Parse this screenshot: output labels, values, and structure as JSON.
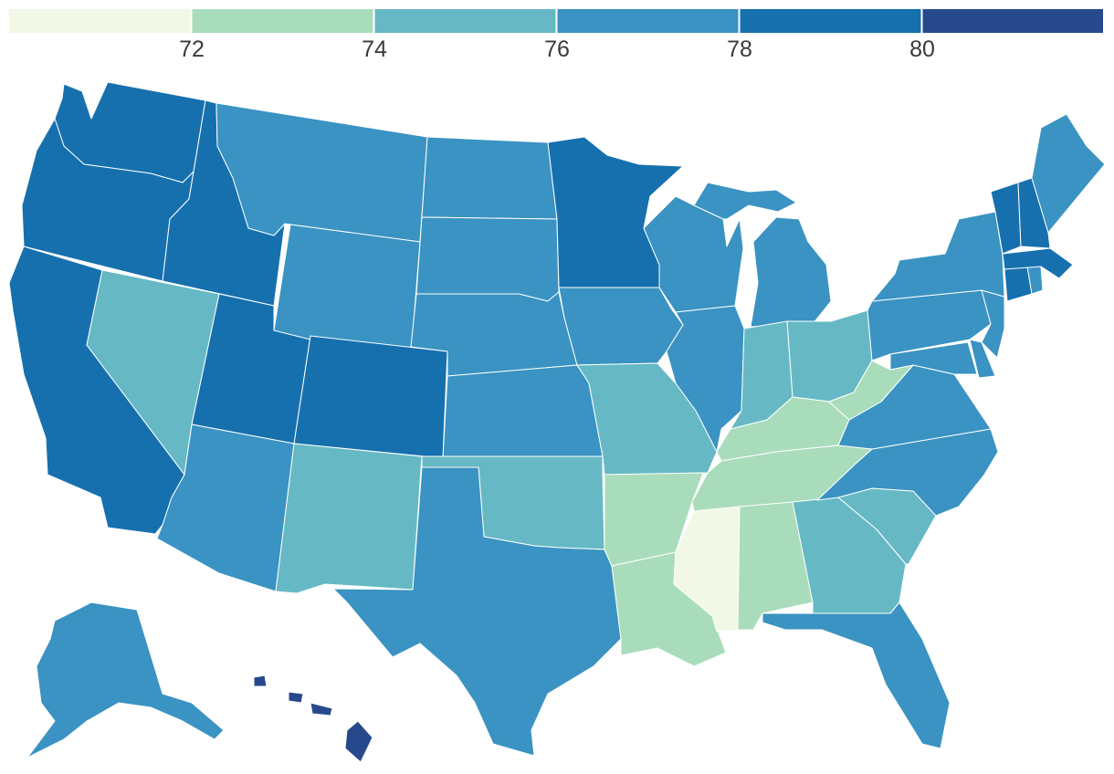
{
  "legend": {
    "bins": [
      {
        "color": "#f1f8e6"
      },
      {
        "color": "#a9dcbb"
      },
      {
        "color": "#66b9c4"
      },
      {
        "color": "#3a93c2"
      },
      {
        "color": "#1670ae"
      },
      {
        "color": "#27498c"
      }
    ],
    "tick_labels": [
      "72",
      "74",
      "76",
      "78",
      "80"
    ]
  },
  "states": [
    {
      "code": "WA",
      "bin": 4
    },
    {
      "code": "OR",
      "bin": 4
    },
    {
      "code": "CA",
      "bin": 4
    },
    {
      "code": "ID",
      "bin": 4
    },
    {
      "code": "UT",
      "bin": 4
    },
    {
      "code": "CO",
      "bin": 4
    },
    {
      "code": "MN",
      "bin": 4
    },
    {
      "code": "VT",
      "bin": 4
    },
    {
      "code": "NH",
      "bin": 4
    },
    {
      "code": "MA",
      "bin": 4
    },
    {
      "code": "CT",
      "bin": 4
    },
    {
      "code": "NV",
      "bin": 2
    },
    {
      "code": "NM",
      "bin": 2
    },
    {
      "code": "OK",
      "bin": 2
    },
    {
      "code": "MO",
      "bin": 2
    },
    {
      "code": "IN",
      "bin": 2
    },
    {
      "code": "OH",
      "bin": 2
    },
    {
      "code": "GA",
      "bin": 2
    },
    {
      "code": "SC",
      "bin": 2
    },
    {
      "code": "AR",
      "bin": 1
    },
    {
      "code": "LA",
      "bin": 1
    },
    {
      "code": "AL",
      "bin": 1
    },
    {
      "code": "TN",
      "bin": 1
    },
    {
      "code": "KY",
      "bin": 1
    },
    {
      "code": "WV",
      "bin": 1
    },
    {
      "code": "MS",
      "bin": 0
    },
    {
      "code": "HI",
      "bin": 5
    },
    {
      "code": "MT",
      "bin": 3
    },
    {
      "code": "WY",
      "bin": 3
    },
    {
      "code": "ND",
      "bin": 3
    },
    {
      "code": "SD",
      "bin": 3
    },
    {
      "code": "NE",
      "bin": 3
    },
    {
      "code": "KS",
      "bin": 3
    },
    {
      "code": "TX",
      "bin": 3
    },
    {
      "code": "AZ",
      "bin": 3
    },
    {
      "code": "IA",
      "bin": 3
    },
    {
      "code": "WI",
      "bin": 3
    },
    {
      "code": "IL",
      "bin": 3
    },
    {
      "code": "MI",
      "bin": 3
    },
    {
      "code": "NY",
      "bin": 3
    },
    {
      "code": "PA",
      "bin": 3
    },
    {
      "code": "NJ",
      "bin": 3
    },
    {
      "code": "VA",
      "bin": 3
    },
    {
      "code": "NC",
      "bin": 3
    },
    {
      "code": "FL",
      "bin": 3
    },
    {
      "code": "ME",
      "bin": 3
    },
    {
      "code": "MD",
      "bin": 3
    },
    {
      "code": "DE",
      "bin": 3
    },
    {
      "code": "RI",
      "bin": 3
    },
    {
      "code": "AK",
      "bin": 3
    }
  ]
}
